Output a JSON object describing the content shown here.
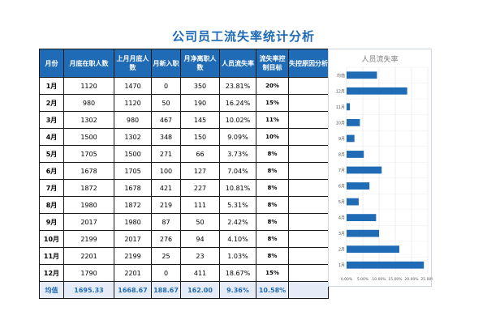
{
  "page": {
    "title": "公司员工流失率统计分析"
  },
  "table": {
    "headers": [
      "月份",
      "月底在职人数",
      "上月月底人数",
      "月新入职",
      "月净离职人数",
      "人员流失率",
      "流失率控制目标",
      "失控原因分析"
    ],
    "rows": [
      [
        "1月",
        "1120",
        "1470",
        "0",
        "350",
        "23.81%",
        "20%",
        ""
      ],
      [
        "2月",
        "980",
        "1120",
        "50",
        "190",
        "16.24%",
        "15%",
        ""
      ],
      [
        "3月",
        "1302",
        "980",
        "467",
        "145",
        "10.02%",
        "11%",
        ""
      ],
      [
        "4月",
        "1500",
        "1302",
        "348",
        "150",
        "9.09%",
        "10%",
        ""
      ],
      [
        "5月",
        "1705",
        "1500",
        "271",
        "66",
        "3.73%",
        "8%",
        ""
      ],
      [
        "6月",
        "1678",
        "1705",
        "100",
        "127",
        "7.04%",
        "8%",
        ""
      ],
      [
        "7月",
        "1872",
        "1678",
        "421",
        "227",
        "10.81%",
        "8%",
        ""
      ],
      [
        "8月",
        "1980",
        "1872",
        "219",
        "111",
        "5.31%",
        "8%",
        ""
      ],
      [
        "9月",
        "2017",
        "1980",
        "87",
        "50",
        "2.42%",
        "8%",
        ""
      ],
      [
        "10月",
        "2199",
        "2017",
        "276",
        "94",
        "4.10%",
        "8%",
        ""
      ],
      [
        "11月",
        "2201",
        "2199",
        "25",
        "23",
        "1.03%",
        "8%",
        ""
      ],
      [
        "12月",
        "1790",
        "2201",
        "0",
        "411",
        "18.67%",
        "15%",
        ""
      ]
    ],
    "footer": [
      "均值",
      "1695.33",
      "1668.67",
      "188.67",
      "162.00",
      "9.36%",
      "10.58%",
      ""
    ]
  },
  "chart_data": {
    "type": "bar",
    "orientation": "horizontal",
    "title": "人员流失率",
    "categories": [
      "1月",
      "2月",
      "3月",
      "4月",
      "5月",
      "6月",
      "7月",
      "8月",
      "9月",
      "10月",
      "11月",
      "12月",
      "均值"
    ],
    "values": [
      23.81,
      16.24,
      10.02,
      9.09,
      3.73,
      7.04,
      10.81,
      5.31,
      2.42,
      4.1,
      1.03,
      18.67,
      9.36
    ],
    "x_ticks": [
      "0.00%",
      "5.00%",
      "10.00%",
      "15.00%",
      "20.00%",
      "25.00%"
    ],
    "xlim": [
      0,
      25
    ],
    "bar_color": "#1f6bb5",
    "grid": true,
    "legend": "none"
  },
  "colors": {
    "accent": "#1f6bb5",
    "header_bg": "#1f6bb5",
    "footer_bg": "#e6ecf7"
  }
}
